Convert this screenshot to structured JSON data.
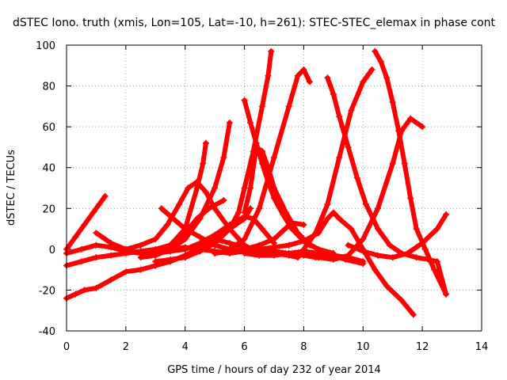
{
  "chart_data": {
    "type": "scatter",
    "title": "dSTEC Iono. truth (xmis, Lon=105, Lat=-10, h=261): STEC-STEC_elemax in phase cont",
    "xlabel": "GPS time / hours of day 232 of year 2014",
    "ylabel": "dSTEC  / TECUs",
    "xlim": [
      0,
      14
    ],
    "ylim": [
      -40,
      100
    ],
    "xticks": [
      "0",
      "2",
      "4",
      "6",
      "8",
      "10",
      "12",
      "14"
    ],
    "yticks": [
      "-40",
      "-20",
      "0",
      "20",
      "40",
      "60",
      "80",
      "100"
    ],
    "grid": true,
    "color": "#ff0000",
    "marker": "plus",
    "series": [
      {
        "x": [
          0.0,
          0.3,
          0.6,
          0.9,
          1.1,
          1.3
        ],
        "y": [
          0,
          6,
          12,
          18,
          22,
          26
        ]
      },
      {
        "x": [
          0.0,
          0.5,
          1.0,
          1.5,
          2.0,
          2.5,
          3.0,
          3.5,
          4.0,
          4.4,
          4.8,
          5.3
        ],
        "y": [
          -8,
          -6,
          -4,
          -3,
          -2,
          -1,
          0,
          2,
          8,
          15,
          20,
          24
        ]
      },
      {
        "x": [
          0.0,
          0.3,
          0.6,
          1.0,
          1.5,
          2.0,
          2.5,
          3.0,
          3.5,
          4.0,
          4.5,
          5.0,
          5.5,
          6.0,
          6.2
        ],
        "y": [
          -24,
          -22,
          -20,
          -19,
          -15,
          -11,
          -10,
          -8,
          -6,
          -3,
          1,
          5,
          10,
          15,
          20
        ]
      },
      {
        "x": [
          0.0,
          0.5,
          1.0,
          1.5,
          2.0,
          2.5,
          3.0,
          3.5,
          4.0,
          4.5,
          5.0,
          5.5,
          6.0,
          6.5,
          7.0
        ],
        "y": [
          -2,
          0,
          2,
          1,
          -1,
          -2,
          -1,
          0,
          1,
          0,
          -1,
          -2,
          -1,
          0,
          -1
        ]
      },
      {
        "x": [
          2.0,
          2.5,
          3.0,
          3.4,
          3.8,
          4.1,
          4.4,
          4.7,
          5.0,
          5.5,
          6.0,
          6.5
        ],
        "y": [
          0,
          2,
          5,
          12,
          22,
          30,
          33,
          28,
          20,
          10,
          2,
          -2
        ]
      },
      {
        "x": [
          1.0,
          1.5,
          2.0,
          2.5,
          3.0,
          3.5,
          4.0,
          4.4,
          4.6,
          4.7
        ],
        "y": [
          8,
          3,
          0,
          -2,
          -1,
          2,
          10,
          30,
          42,
          52
        ]
      },
      {
        "x": [
          2.5,
          3.0,
          3.5,
          4.0,
          4.5,
          5.0,
          5.3,
          5.5
        ],
        "y": [
          -4,
          -3,
          0,
          5,
          15,
          30,
          45,
          62
        ]
      },
      {
        "x": [
          3.2,
          3.6,
          4.0,
          4.5,
          5.0,
          5.5,
          6.0,
          6.5,
          7.0,
          7.5,
          7.8
        ],
        "y": [
          20,
          15,
          10,
          6,
          2,
          0,
          -1,
          -2,
          -2,
          -3,
          -4
        ]
      },
      {
        "x": [
          3.0,
          3.5,
          4.0,
          4.5,
          5.0,
          5.5,
          6.0,
          6.3,
          6.6,
          7.0
        ],
        "y": [
          -2,
          -1,
          0,
          3,
          7,
          12,
          16,
          15,
          10,
          3
        ]
      },
      {
        "x": [
          3.0,
          3.5,
          4.0,
          4.5,
          5.0,
          5.5,
          5.8,
          6.0,
          6.3,
          6.6,
          6.8,
          6.9
        ],
        "y": [
          -6,
          -5,
          -4,
          -1,
          3,
          10,
          18,
          30,
          48,
          70,
          85,
          97
        ]
      },
      {
        "x": [
          6.0,
          6.2,
          6.4,
          6.6,
          6.8,
          7.0,
          7.3,
          7.6,
          8.0,
          8.5,
          9.0
        ],
        "y": [
          73,
          62,
          52,
          42,
          33,
          25,
          17,
          10,
          4,
          0,
          -2
        ]
      },
      {
        "x": [
          6.0,
          6.2,
          6.4,
          6.6,
          6.8,
          7.0,
          7.4,
          7.8,
          8.2,
          8.8,
          9.4,
          10.0
        ],
        "y": [
          18,
          30,
          50,
          48,
          40,
          30,
          18,
          8,
          2,
          -2,
          -5,
          -7
        ]
      },
      {
        "x": [
          5.5,
          6.0,
          6.5,
          7.0,
          7.5,
          7.8,
          8.0,
          8.2
        ],
        "y": [
          0,
          5,
          20,
          45,
          70,
          85,
          88,
          82
        ]
      },
      {
        "x": [
          5.0,
          5.5,
          6.0,
          6.5,
          7.0,
          7.3,
          7.6,
          8.0
        ],
        "y": [
          -2,
          -1,
          0,
          2,
          5,
          9,
          13,
          12
        ]
      },
      {
        "x": [
          5.0,
          5.5,
          6.0,
          6.5,
          7.0,
          7.5,
          8.0,
          8.4,
          8.7,
          9.0
        ],
        "y": [
          5,
          3,
          1,
          0,
          -1,
          -2,
          -3,
          -4,
          -4,
          -3
        ]
      },
      {
        "x": [
          6.0,
          6.5,
          7.0,
          7.5,
          8.0,
          8.5,
          9.0,
          9.5,
          10.0
        ],
        "y": [
          -2,
          -3,
          -3,
          -2,
          -1,
          -2,
          -3,
          -4,
          -6
        ]
      },
      {
        "x": [
          6.0,
          6.5,
          7.0,
          7.5,
          8.0,
          8.5,
          8.8,
          9.0,
          9.2,
          9.6,
          10.0,
          10.4,
          10.8,
          11.3,
          11.7
        ],
        "y": [
          -1,
          0,
          1,
          2,
          4,
          8,
          15,
          18,
          15,
          10,
          0,
          -10,
          -18,
          -25,
          -32
        ]
      },
      {
        "x": [
          8.8,
          9.0,
          9.2,
          9.5,
          9.8,
          10.1,
          10.5,
          10.9,
          11.3,
          11.8,
          12.2,
          12.5,
          12.8
        ],
        "y": [
          84,
          76,
          65,
          50,
          35,
          22,
          10,
          2,
          -2,
          -4,
          -5,
          -6,
          -22
        ]
      },
      {
        "x": [
          8.0,
          8.4,
          8.8,
          9.2,
          9.6,
          10.0,
          10.2,
          10.3
        ],
        "y": [
          0,
          8,
          22,
          45,
          68,
          82,
          86,
          88
        ]
      },
      {
        "x": [
          10.4,
          10.6,
          10.8,
          11.0,
          11.2,
          11.4,
          11.6,
          11.8,
          12.1,
          12.4,
          12.8
        ],
        "y": [
          97,
          92,
          84,
          72,
          58,
          42,
          25,
          10,
          0,
          -10,
          -22
        ]
      },
      {
        "x": [
          8.5,
          9.0,
          9.5,
          10.0,
          10.5,
          11.0,
          11.3,
          11.6,
          12.0
        ],
        "y": [
          -4,
          -5,
          -3,
          5,
          20,
          42,
          58,
          64,
          60
        ]
      },
      {
        "x": [
          9.5,
          10.0,
          10.5,
          11.0,
          11.5,
          12.0,
          12.5,
          12.8
        ],
        "y": [
          2,
          -1,
          -3,
          -4,
          -2,
          3,
          10,
          17
        ]
      }
    ]
  }
}
